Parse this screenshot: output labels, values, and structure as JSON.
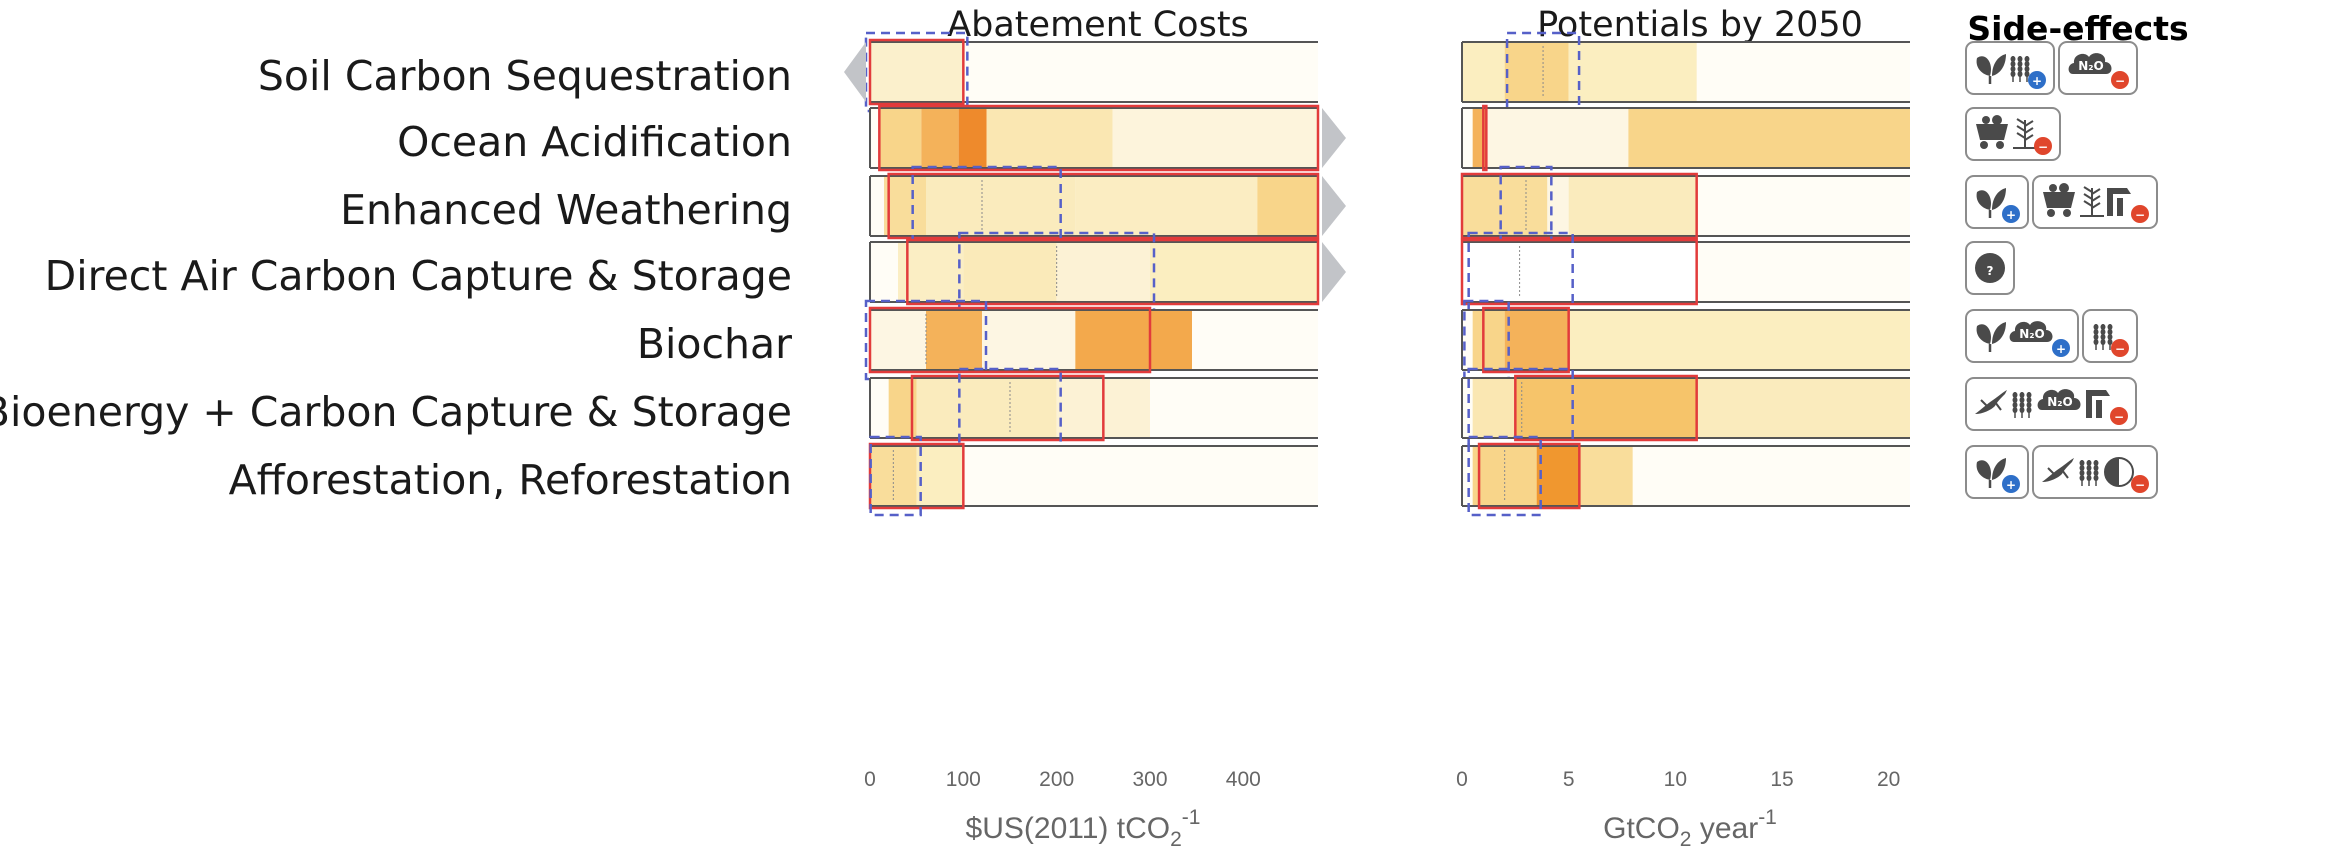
{
  "titles": {
    "costs": "Abatement Costs",
    "potentials": "Potentials by 2050",
    "side_effects": "Side-effects"
  },
  "axes": {
    "costs_unit": "$US(2011) tCO",
    "costs_unit_sub": "2",
    "costs_unit_sup": "-1",
    "potentials_unit": "GtCO",
    "potentials_unit_sub": "2",
    "potentials_unit_rest": " year",
    "potentials_unit_sup": "-1"
  },
  "colors": {
    "bar_background": "#fdf9ea",
    "heat_light": "#fbeec0",
    "heat_mid": "#f7d88a",
    "heat_dark": "#f2a94a",
    "heat_darkest": "#ee8a2c",
    "range_box": "#e23b3b",
    "dashed_box": "#5660c8",
    "arrow": "#c2c4c8",
    "icon_dark": "#4a4a4a",
    "plus": "#2e6fc8",
    "minus": "#e0462c"
  },
  "chart_data": [
    {
      "type": "heatmap",
      "title": "Abatement Costs",
      "xlabel": "$US(2011) tCO2-1",
      "xlim": [
        0,
        480
      ],
      "xticks": [
        0,
        100,
        200,
        300,
        400
      ],
      "categories": [
        "Soil Carbon Sequestration",
        "Ocean Acidification",
        "Enhanced Weathering",
        "Direct Air Carbon Capture & Storage",
        "Biochar",
        "Bioenergy + Carbon Capture & Storage",
        "Afforestation, Reforestation"
      ],
      "rows": [
        {
          "name": "Soil Carbon Sequestration",
          "left_arrow": true,
          "right_arrow": false,
          "heat": [
            [
              0,
              100,
              "#fbf0cc"
            ]
          ],
          "range": [
            0,
            100
          ],
          "dashed": [
            0,
            100
          ],
          "median": 0
        },
        {
          "name": "Ocean Acidification",
          "left_arrow": false,
          "right_arrow": true,
          "heat": [
            [
              10,
              55,
              "#f8d58a"
            ],
            [
              55,
              95,
              "#f4b25a"
            ],
            [
              95,
              125,
              "#ee8a2c"
            ],
            [
              125,
              260,
              "#fae7b2"
            ],
            [
              260,
              480,
              "#fdf4dc"
            ]
          ],
          "range": [
            10,
            480
          ],
          "dashed": null,
          "median": null
        },
        {
          "name": "Enhanced Weathering",
          "left_arrow": false,
          "right_arrow": true,
          "heat": [
            [
              15,
              60,
              "#f9dd9b"
            ],
            [
              60,
              220,
              "#faebbd"
            ],
            [
              220,
              415,
              "#fbedc2"
            ],
            [
              415,
              480,
              "#f8d58a"
            ]
          ],
          "range": [
            20,
            480
          ],
          "dashed": [
            50,
            200
          ],
          "median": 120
        },
        {
          "name": "Direct Air Carbon Capture & Storage",
          "left_arrow": false,
          "right_arrow": true,
          "heat": [
            [
              30,
              100,
              "#fbeec4"
            ],
            [
              100,
              200,
              "#faeab9"
            ],
            [
              200,
              300,
              "#fcf2d5"
            ],
            [
              300,
              480,
              "#fbeec0"
            ]
          ],
          "range": [
            40,
            480
          ],
          "dashed": [
            100,
            300
          ],
          "median": 200
        },
        {
          "name": "Biochar",
          "left_arrow": false,
          "right_arrow": false,
          "heat": [
            [
              0,
              60,
              "#fdf6e3"
            ],
            [
              60,
              120,
              "#f4b25a"
            ],
            [
              120,
              220,
              "#fdf6e3"
            ],
            [
              220,
              345,
              "#f3a94c"
            ]
          ],
          "range": [
            0,
            300
          ],
          "dashed": [
            0,
            120
          ],
          "median": 60
        },
        {
          "name": "Bioenergy + Carbon Capture & Storage",
          "left_arrow": false,
          "right_arrow": false,
          "heat": [
            [
              20,
              50,
              "#f8d58a"
            ],
            [
              50,
              200,
              "#faebbd"
            ],
            [
              200,
              300,
              "#fcf2d5"
            ]
          ],
          "range": [
            45,
            250
          ],
          "dashed": [
            100,
            200
          ],
          "median": 150
        },
        {
          "name": "Afforestation, Reforestation",
          "left_arrow": false,
          "right_arrow": false,
          "heat": [
            [
              0,
              50,
              "#f9dd9b"
            ],
            [
              50,
              100,
              "#fbeec0"
            ]
          ],
          "range": [
            0,
            100
          ],
          "dashed": [
            5,
            50
          ],
          "median": 25
        }
      ]
    },
    {
      "type": "heatmap",
      "title": "Potentials by 2050",
      "xlabel": "GtCO2 year-1",
      "xlim": [
        0,
        21
      ],
      "xticks": [
        0,
        5,
        10,
        15,
        20
      ],
      "categories": [
        "Soil Carbon Sequestration",
        "Ocean Acidification",
        "Enhanced Weathering",
        "Direct Air Carbon Capture & Storage",
        "Biochar",
        "Bioenergy + Carbon Capture & Storage",
        "Afforestation, Reforestation"
      ],
      "rows": [
        {
          "name": "Soil Carbon Sequestration",
          "heat": [
            [
              0,
              2,
              "#fbeec0"
            ],
            [
              2,
              5,
              "#f8d58a"
            ],
            [
              5,
              11,
              "#fbeec0"
            ]
          ],
          "range": null,
          "dashed": [
            2.3,
            5.3
          ],
          "median": 3.8
        },
        {
          "name": "Ocean Acidification",
          "heat": [
            [
              0.5,
              1.2,
              "#f4b25a"
            ],
            [
              1.2,
              7.8,
              "#fdf6e3"
            ],
            [
              7.8,
              21,
              "#f8d58a"
            ]
          ],
          "range": [
            1.0,
            1.0
          ],
          "dashed": null,
          "median": null
        },
        {
          "name": "Enhanced Weathering",
          "heat": [
            [
              0,
              4,
              "#f9dd9b"
            ],
            [
              4,
              5,
              "#fdf6e3"
            ],
            [
              5,
              11,
              "#faebbd"
            ]
          ],
          "range": [
            0,
            11
          ],
          "dashed": [
            2,
            4
          ],
          "median": 3
        },
        {
          "name": "Direct Air Carbon Capture & Storage",
          "heat": [
            [
              0,
              11,
              "#ffffff"
            ]
          ],
          "range": [
            0,
            11
          ],
          "dashed": [
            0.5,
            5
          ],
          "median": 2.7
        },
        {
          "name": "Biochar",
          "heat": [
            [
              0.5,
              2,
              "#f8d58a"
            ],
            [
              2,
              5,
              "#f4b25a"
            ],
            [
              5,
              21,
              "#fbeec0"
            ]
          ],
          "range": [
            1,
            5
          ],
          "dashed": [
            0.3,
            2
          ],
          "median": 1
        },
        {
          "name": "Bioenergy + Carbon Capture & Storage",
          "heat": [
            [
              0.5,
              2.5,
              "#fae7b2"
            ],
            [
              2.5,
              11,
              "#f6c46a"
            ],
            [
              11,
              21,
              "#faebbd"
            ]
          ],
          "range": [
            2.5,
            11
          ],
          "dashed": [
            0.5,
            5
          ],
          "median": 2.8
        },
        {
          "name": "Afforestation, Reforestation",
          "heat": [
            [
              0.5,
              3.5,
              "#f8d58a"
            ],
            [
              3.5,
              5.5,
              "#f0972f"
            ],
            [
              5.5,
              8,
              "#f9dd9b"
            ]
          ],
          "range": [
            0.8,
            5.5
          ],
          "dashed": [
            0.5,
            3.5
          ],
          "median": 2
        }
      ]
    }
  ],
  "side_effects": [
    {
      "row": "Soil Carbon Sequestration",
      "groups": [
        {
          "icons": [
            "leaf-icon",
            "grain-icon"
          ],
          "sign": "+"
        },
        {
          "icons": [
            "n2o-cloud-icon"
          ],
          "sign": "-"
        }
      ]
    },
    {
      "row": "Ocean Acidification",
      "groups": [
        {
          "icons": [
            "mining-cart-icon",
            "water-plant-icon"
          ],
          "sign": "-"
        }
      ]
    },
    {
      "row": "Enhanced Weathering",
      "groups": [
        {
          "icons": [
            "leaf-icon"
          ],
          "sign": "+"
        },
        {
          "icons": [
            "mining-cart-icon",
            "water-plant-icon",
            "factory-icon"
          ],
          "sign": "-"
        }
      ]
    },
    {
      "row": "Direct Air Carbon Capture & Storage",
      "groups": [
        {
          "icons": [
            "question-icon"
          ],
          "sign": null
        }
      ]
    },
    {
      "row": "Biochar",
      "groups": [
        {
          "icons": [
            "leaf-icon",
            "n2o-cloud-icon"
          ],
          "sign": "+"
        },
        {
          "icons": [
            "grain-icon"
          ],
          "sign": "-"
        }
      ]
    },
    {
      "row": "Bioenergy + Carbon Capture & Storage",
      "groups": [
        {
          "icons": [
            "lizard-icon",
            "grain-icon",
            "n2o-cloud-icon",
            "factory-icon"
          ],
          "sign": "-"
        }
      ]
    },
    {
      "row": "Afforestation, Reforestation",
      "groups": [
        {
          "icons": [
            "leaf-icon"
          ],
          "sign": "+"
        },
        {
          "icons": [
            "lizard-icon",
            "grain-icon",
            "albedo-icon"
          ],
          "sign": "-"
        }
      ]
    }
  ],
  "icon_text": {
    "n2o": "N₂O",
    "question": "?",
    "plus": "+",
    "minus": "−"
  }
}
